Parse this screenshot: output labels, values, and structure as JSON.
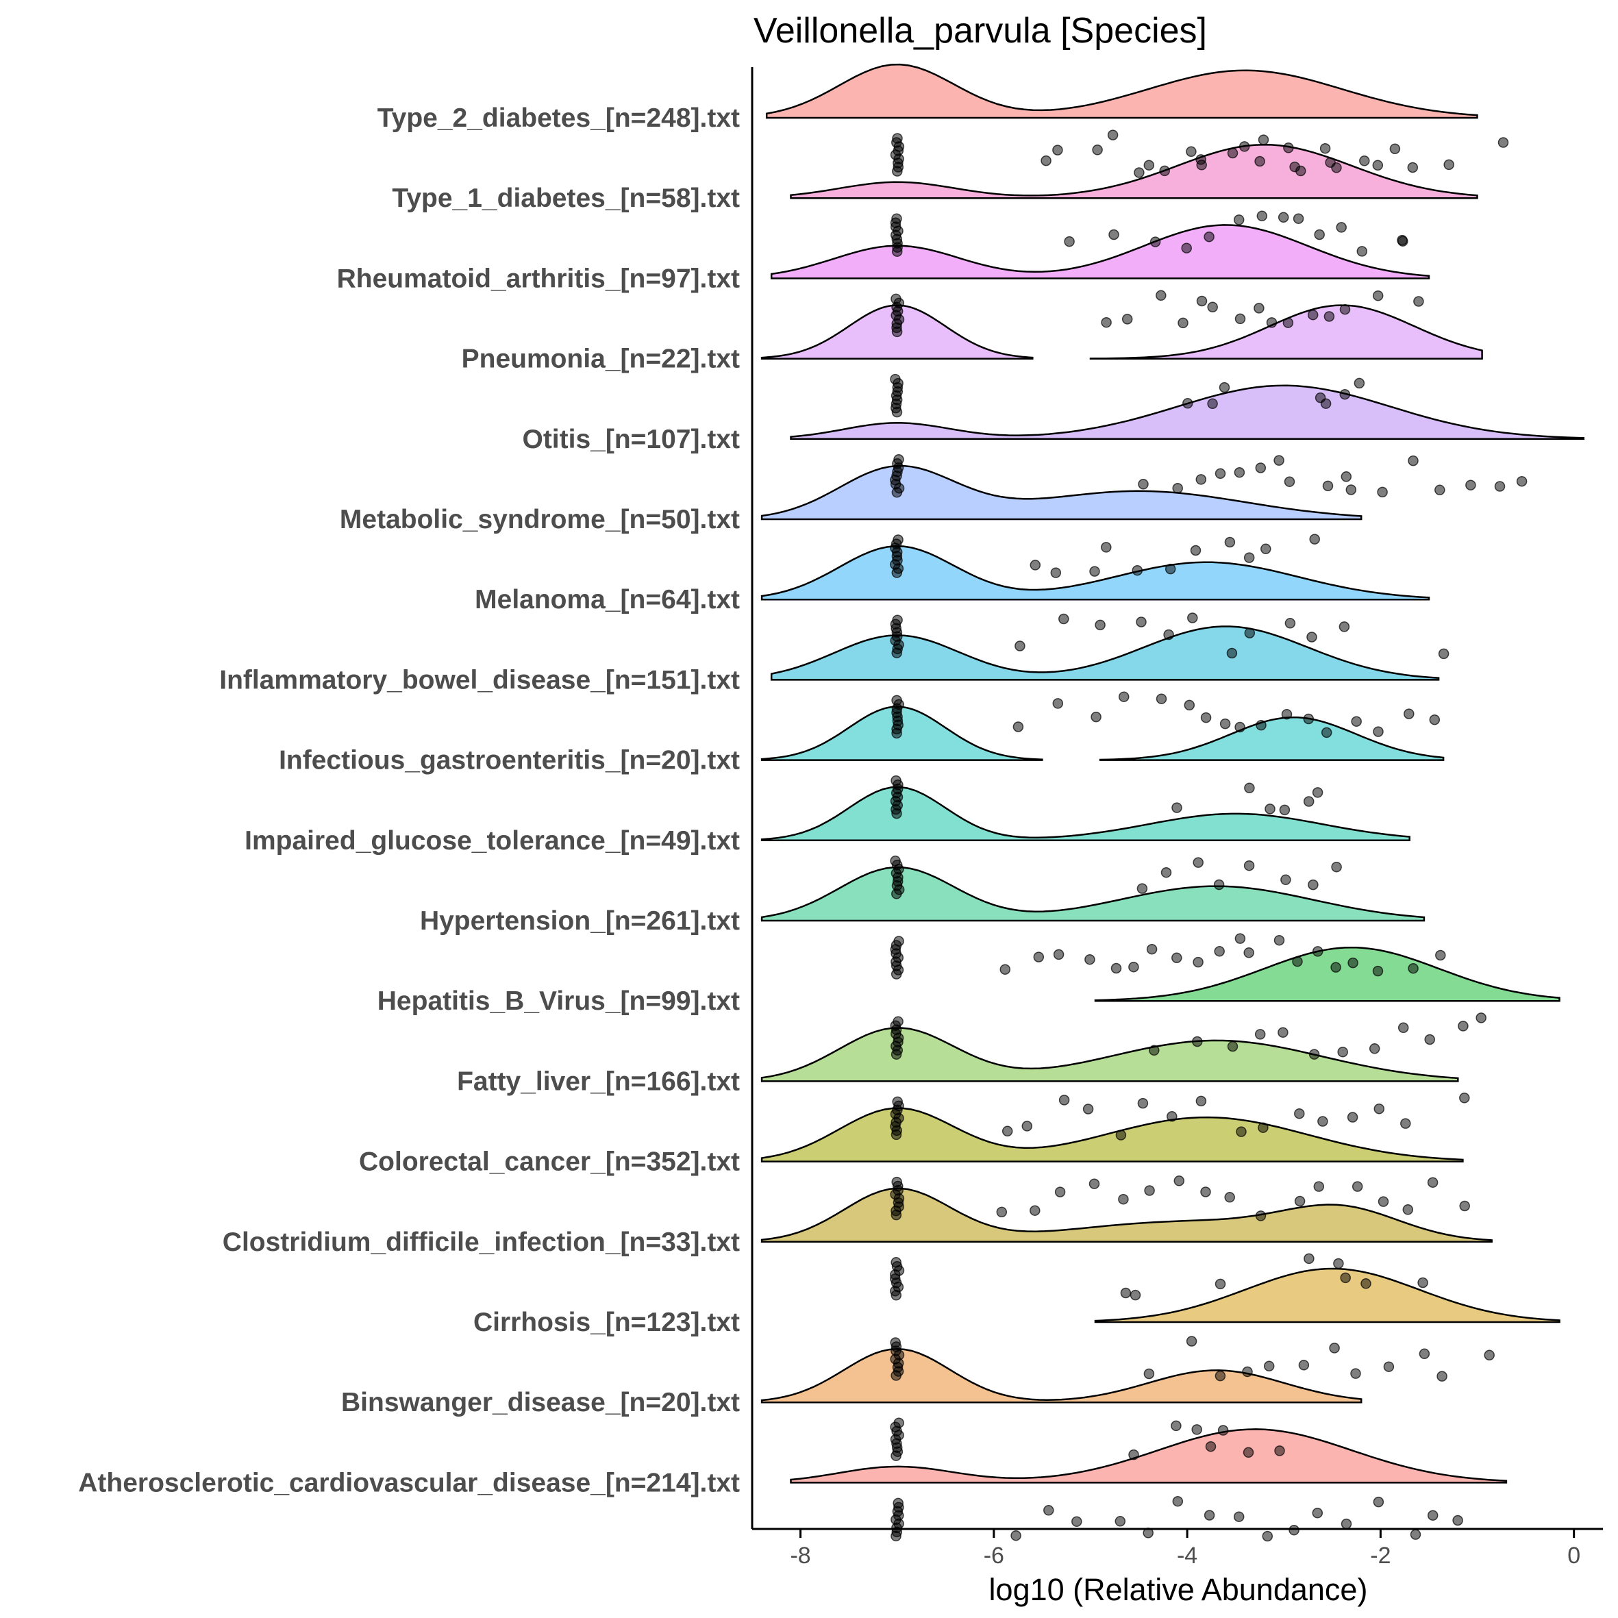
{
  "chart_data": {
    "type": "ridgeline",
    "title": "Veillonella_parvula [Species]",
    "xlabel": "log10 (Relative Abundance)",
    "ylabel": "",
    "xlim": [
      -8.5,
      0.3
    ],
    "x_ticks": [
      -8,
      -6,
      -4,
      -2,
      0
    ],
    "x_tick_labels": [
      "-8",
      "-6",
      "-4",
      "-2",
      "0"
    ],
    "detection_floor": -7,
    "series": [
      {
        "name": "Type_2_diabetes_[n=248].txt",
        "color": "#F8766D",
        "xmin": -8.35,
        "xmax": -1.0,
        "components": [
          {
            "mu": -7.0,
            "sd": 0.6,
            "w": 0.9
          },
          {
            "mu": -3.4,
            "sd": 1.0,
            "w": 0.8
          }
        ],
        "points": [
          -5.5,
          -5.3,
          -4.9,
          -4.7,
          -4.5,
          -4.2,
          -4.0,
          -3.8,
          -3.6,
          -3.4,
          -3.2,
          -3.0,
          -2.8,
          -2.6,
          -2.4,
          -2.2,
          -2.0,
          -1.8,
          -1.6,
          -1.3,
          -0.7,
          -4.4,
          -3.9,
          -3.3,
          -2.9,
          -2.5
        ]
      },
      {
        "name": "Type_1_diabetes_[n=58].txt",
        "color": "#F06FC0",
        "xmin": -8.1,
        "xmax": -1.0,
        "components": [
          {
            "mu": -7.0,
            "sd": 0.6,
            "w": 0.3
          },
          {
            "mu": -3.2,
            "sd": 0.9,
            "w": 1.0
          }
        ],
        "points": [
          -5.2,
          -4.8,
          -4.4,
          -4.0,
          -3.8,
          -3.5,
          -3.2,
          -3.0,
          -2.8,
          -2.6,
          -2.4,
          -2.2,
          -1.8,
          -1.7
        ]
      },
      {
        "name": "Rheumatoid_arthritis_[n=97].txt",
        "color": "#E76BF3",
        "xmin": -8.3,
        "xmax": -1.5,
        "components": [
          {
            "mu": -7.0,
            "sd": 0.65,
            "w": 0.55
          },
          {
            "mu": -3.6,
            "sd": 0.85,
            "w": 0.9
          }
        ],
        "points": [
          -4.9,
          -4.6,
          -4.3,
          -4.1,
          -3.9,
          -3.7,
          -3.5,
          -3.3,
          -3.1,
          -2.9,
          -2.7,
          -2.5,
          -2.3,
          -2.0,
          -1.6
        ]
      },
      {
        "name": "Pneumonia_[n=22].txt",
        "color": "#D89000",
        "fill": "#D68BF5",
        "xmin": -8.4,
        "xmax": -5.6,
        "xmin2": -5.0,
        "xmax2": -0.95,
        "components": [
          {
            "mu": -7.0,
            "sd": 0.5,
            "w": 0.85
          },
          {
            "mu": -2.4,
            "sd": 0.75,
            "w": 0.85
          }
        ],
        "points": [
          -4.0,
          -3.8,
          -3.6,
          -2.6,
          -2.5,
          -2.4,
          -2.2
        ]
      },
      {
        "name": "Otitis_[n=107].txt",
        "color": "#B98AF5",
        "xmin": -8.1,
        "xmax": 0.1,
        "components": [
          {
            "mu": -7.0,
            "sd": 0.55,
            "w": 0.3
          },
          {
            "mu": -3.0,
            "sd": 1.1,
            "w": 1.0
          }
        ],
        "points": [
          -4.4,
          -4.1,
          -3.8,
          -3.5,
          -3.2,
          -2.9,
          -2.6,
          -2.3,
          -2.0,
          -1.7,
          -1.4,
          -1.1,
          -0.8,
          -0.6,
          -3.7,
          -3.0,
          -2.4
        ]
      },
      {
        "name": "Metabolic_syndrome_[n=50].txt",
        "color": "#7FA8FF",
        "xmin": -8.4,
        "xmax": -2.2,
        "components": [
          {
            "mu": -7.0,
            "sd": 0.6,
            "w": 1.0
          },
          {
            "mu": -4.5,
            "sd": 1.1,
            "w": 0.55
          }
        ],
        "points": [
          -5.6,
          -5.3,
          -5.0,
          -4.8,
          -4.5,
          -4.2,
          -3.9,
          -3.6,
          -3.4,
          -3.2,
          -2.7
        ]
      },
      {
        "name": "Melanoma_[n=64].txt",
        "color": "#39B6F7",
        "xmin": -8.4,
        "xmax": -1.5,
        "components": [
          {
            "mu": -7.0,
            "sd": 0.6,
            "w": 1.0
          },
          {
            "mu": -3.8,
            "sd": 0.95,
            "w": 0.7
          }
        ],
        "points": [
          -5.7,
          -5.3,
          -4.9,
          -4.5,
          -4.2,
          -3.9,
          -3.6,
          -3.3,
          -3.0,
          -2.7,
          -2.4,
          -1.3
        ]
      },
      {
        "name": "Inflammatory_bowel_disease_[n=151].txt",
        "color": "#1FB8D8",
        "xmin": -8.3,
        "xmax": -1.4,
        "components": [
          {
            "mu": -7.0,
            "sd": 0.65,
            "w": 0.75
          },
          {
            "mu": -3.6,
            "sd": 0.85,
            "w": 0.9
          }
        ],
        "points": [
          -5.8,
          -5.3,
          -4.9,
          -4.6,
          -4.3,
          -4.0,
          -3.8,
          -3.6,
          -3.4,
          -3.2,
          -3.0,
          -2.8,
          -2.6,
          -2.3,
          -2.0,
          -1.7,
          -1.4
        ]
      },
      {
        "name": "Infectious_gastroenteritis_[n=20].txt",
        "color": "#1DC2C2",
        "xmin": -8.4,
        "xmax": -5.5,
        "xmin2": -4.9,
        "xmax2": -1.35,
        "components": [
          {
            "mu": -7.0,
            "sd": 0.5,
            "w": 1.0
          },
          {
            "mu": -2.9,
            "sd": 0.65,
            "w": 0.8
          }
        ],
        "points": [
          -4.1,
          -3.4,
          -3.2,
          -3.0,
          -2.8,
          -2.6
        ]
      },
      {
        "name": "Impaired_glucose_tolerance_[n=49].txt",
        "color": "#19C7A8",
        "xmin": -8.4,
        "xmax": -1.7,
        "components": [
          {
            "mu": -7.0,
            "sd": 0.5,
            "w": 1.0
          },
          {
            "mu": -3.5,
            "sd": 0.9,
            "w": 0.5
          }
        ],
        "points": [
          -4.4,
          -4.2,
          -3.9,
          -3.6,
          -3.3,
          -3.0,
          -2.7,
          -2.4
        ]
      },
      {
        "name": "Hypertension_[n=261].txt",
        "color": "#27C685",
        "xmin": -8.4,
        "xmax": -1.55,
        "components": [
          {
            "mu": -7.0,
            "sd": 0.6,
            "w": 0.85
          },
          {
            "mu": -3.7,
            "sd": 1.0,
            "w": 0.55
          }
        ],
        "points": [
          -5.9,
          -5.6,
          -5.3,
          -5.0,
          -4.7,
          -4.5,
          -4.3,
          -4.1,
          -3.9,
          -3.7,
          -3.5,
          -3.3,
          -3.1,
          -2.9,
          -2.7,
          -2.5,
          -2.3,
          -2.0,
          -1.7,
          -1.4
        ]
      },
      {
        "name": "Hepatitis_B_Virus_[n=99].txt",
        "color": "#1FBF3C",
        "xmin": -4.95,
        "xmax": -0.15,
        "components": [
          {
            "mu": -2.3,
            "sd": 0.9,
            "w": 1.0
          }
        ],
        "points": [
          -4.3,
          -3.9,
          -3.6,
          -3.3,
          -3.0,
          -2.7,
          -2.4,
          -2.1,
          -1.8,
          -1.5,
          -1.2,
          -1.0
        ]
      },
      {
        "name": "Fatty_liver_[n=166].txt",
        "color": "#7CC241",
        "xmin": -8.4,
        "xmax": -1.2,
        "components": [
          {
            "mu": -7.0,
            "sd": 0.6,
            "w": 0.65
          },
          {
            "mu": -3.7,
            "sd": 1.1,
            "w": 0.5
          }
        ],
        "points": [
          -5.9,
          -5.6,
          -5.3,
          -5.0,
          -4.7,
          -4.4,
          -4.1,
          -3.8,
          -3.5,
          -3.2,
          -2.9,
          -2.6,
          -2.3,
          -2.0,
          -1.7,
          -1.2
        ]
      },
      {
        "name": "Colorectal_cancer_[n=352].txt",
        "color": "#A3A500",
        "xmin": -8.4,
        "xmax": -1.15,
        "components": [
          {
            "mu": -7.0,
            "sd": 0.6,
            "w": 0.6
          },
          {
            "mu": -3.8,
            "sd": 1.05,
            "w": 0.5
          }
        ],
        "points": [
          -5.9,
          -5.6,
          -5.3,
          -5.0,
          -4.7,
          -4.4,
          -4.1,
          -3.8,
          -3.5,
          -3.2,
          -2.9,
          -2.6,
          -2.3,
          -2.0,
          -1.7,
          -1.4,
          -1.2
        ]
      },
      {
        "name": "Clostridium_difficile_infection_[n=33].txt",
        "color": "#B89B0E",
        "xmin": -8.4,
        "xmax": -0.85,
        "components": [
          {
            "mu": -7.0,
            "sd": 0.55,
            "w": 0.65
          },
          {
            "mu": -4.0,
            "sd": 1.2,
            "w": 0.25
          },
          {
            "mu": -2.4,
            "sd": 0.6,
            "w": 0.35
          }
        ],
        "points": [
          -4.7,
          -4.5,
          -3.6,
          -2.7,
          -2.5,
          -2.3,
          -2.1,
          -1.6
        ]
      },
      {
        "name": "Cirrhosis_[n=123].txt",
        "color": "#D5A019",
        "xmin": -4.95,
        "xmax": -0.15,
        "components": [
          {
            "mu": -2.5,
            "sd": 0.9,
            "w": 1.0
          }
        ],
        "points": [
          -4.4,
          -4.0,
          -3.7,
          -3.4,
          -3.1,
          -2.8,
          -2.5,
          -2.2,
          -1.9,
          -1.6,
          -1.3,
          -0.9
        ]
      },
      {
        "name": "Binswanger_disease_[n=20].txt",
        "color": "#EB8F37",
        "xmin": -8.4,
        "xmax": -2.2,
        "components": [
          {
            "mu": -7.0,
            "sd": 0.55,
            "w": 1.0
          },
          {
            "mu": -3.7,
            "sd": 0.7,
            "w": 0.6
          }
        ],
        "points": [
          -4.5,
          -4.1,
          -3.9,
          -3.7,
          -3.6,
          -3.3,
          -3.0
        ]
      },
      {
        "name": "Atherosclerotic_cardiovascular_disease_[n=214].txt",
        "color": "#F8766D",
        "xmin": -8.1,
        "xmax": -0.7,
        "components": [
          {
            "mu": -7.0,
            "sd": 0.6,
            "w": 0.3
          },
          {
            "mu": -3.3,
            "sd": 1.0,
            "w": 1.0
          }
        ],
        "points": [
          -5.8,
          -5.5,
          -5.1,
          -4.7,
          -4.4,
          -4.1,
          -3.8,
          -3.5,
          -3.2,
          -2.9,
          -2.6,
          -2.3,
          -2.0,
          -1.7,
          -1.4,
          -1.2
        ]
      }
    ]
  }
}
